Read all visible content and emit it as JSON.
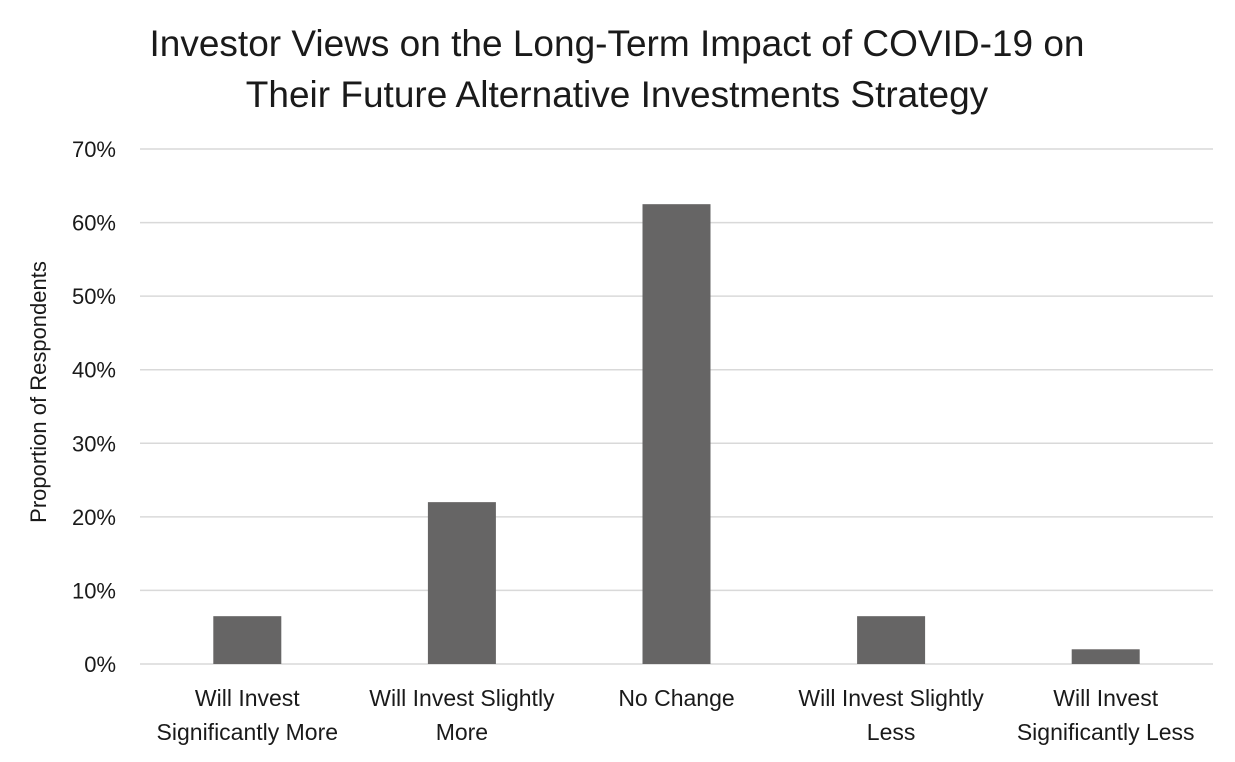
{
  "chart_data": {
    "type": "bar",
    "title_lines": [
      "Investor Views on the Long-Term Impact of COVID-19 on",
      "Their Future Alternative Investments Strategy"
    ],
    "xlabel": "",
    "ylabel": "Proportion of Respondents",
    "categories": [
      [
        "Will Invest",
        "Significantly More"
      ],
      [
        "Will Invest Slightly",
        "More"
      ],
      [
        "No Change"
      ],
      [
        "Will Invest Slightly",
        "Less"
      ],
      [
        "Will Invest",
        "Significantly Less"
      ]
    ],
    "values": [
      6.5,
      22,
      62.5,
      6.5,
      2
    ],
    "ylim": [
      0,
      70
    ],
    "yticks": [
      0,
      10,
      20,
      30,
      40,
      50,
      60,
      70
    ],
    "ytick_labels": [
      "0%",
      "10%",
      "20%",
      "30%",
      "40%",
      "50%",
      "60%",
      "70%"
    ],
    "grid": true,
    "legend": "none",
    "colors": {
      "bar": "#666565",
      "grid": "#d9d9d9",
      "text": "#1a1a1a"
    }
  }
}
